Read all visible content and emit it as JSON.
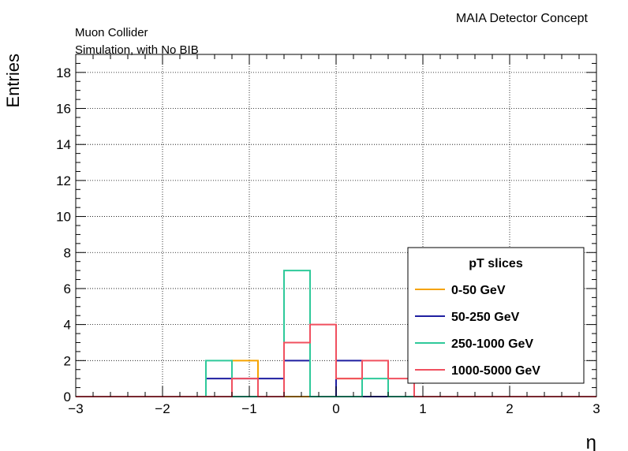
{
  "chart_data": {
    "type": "histogram",
    "title_right": "MAIA Detector Concept",
    "label_line1": "Muon Collider",
    "label_line2": "Simulation, with No BIB",
    "xlabel": "η",
    "ylabel": "Entries",
    "xlim": [
      -3,
      3
    ],
    "ylim": [
      0,
      19
    ],
    "xticks": [
      "−3",
      "−2",
      "−1",
      "0",
      "1",
      "2",
      "3"
    ],
    "xtick_values": [
      -3,
      -2,
      -1,
      0,
      1,
      2,
      3
    ],
    "yticks": [
      "0",
      "2",
      "4",
      "6",
      "8",
      "10",
      "12",
      "14",
      "16",
      "18"
    ],
    "ytick_values": [
      0,
      2,
      4,
      6,
      8,
      10,
      12,
      14,
      16,
      18
    ],
    "grid": true,
    "bin_edges": [
      -3.0,
      -2.7,
      -2.4,
      -2.1,
      -1.8,
      -1.5,
      -1.2,
      -0.9,
      -0.6,
      -0.3,
      0.0,
      0.3,
      0.6,
      0.9,
      1.2,
      1.5,
      1.8,
      2.1,
      2.4,
      2.7,
      3.0
    ],
    "series": [
      {
        "name": "0-50 GeV",
        "color": "#f5a300",
        "values": [
          0,
          0,
          0,
          0,
          0,
          0,
          2,
          0,
          0,
          0,
          1,
          0,
          0,
          0,
          0,
          0,
          0,
          0,
          0,
          0
        ]
      },
      {
        "name": "50-250 GeV",
        "color": "#1f1fa0",
        "values": [
          0,
          0,
          0,
          0,
          0,
          1,
          1,
          1,
          2,
          0,
          2,
          0,
          0,
          0,
          0,
          0,
          0,
          0,
          0,
          0
        ]
      },
      {
        "name": "250-1000 GeV",
        "color": "#2ec99a",
        "values": [
          0,
          0,
          0,
          0,
          0,
          2,
          0,
          0,
          7,
          0,
          0,
          1,
          0,
          0,
          0,
          0,
          0,
          0,
          0,
          0
        ]
      },
      {
        "name": "1000-5000 GeV",
        "color": "#f0505f",
        "values": [
          0,
          0,
          0,
          0,
          0,
          0,
          1,
          0,
          3,
          4,
          1,
          2,
          1,
          0,
          0,
          0,
          0,
          0,
          0,
          0
        ]
      }
    ],
    "legend": {
      "title": "pT slices",
      "placement": "bottom-right"
    }
  }
}
